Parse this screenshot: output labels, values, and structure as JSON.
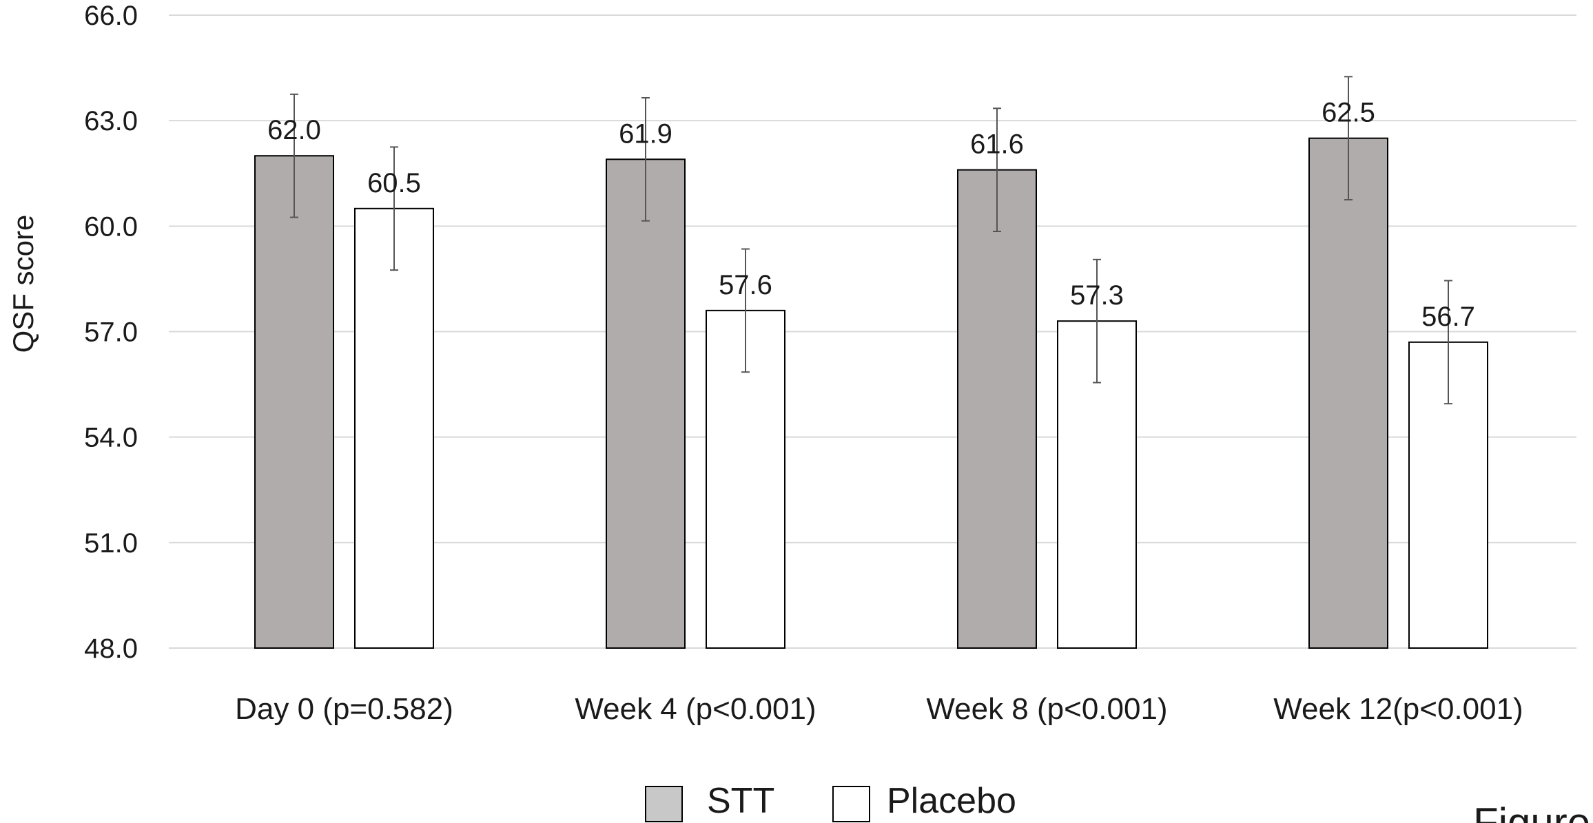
{
  "chart_data": {
    "type": "bar",
    "ylabel": "QSF score",
    "ylim": [
      48.0,
      66.0
    ],
    "yticks": [
      "48.0",
      "51.0",
      "54.0",
      "57.0",
      "60.0",
      "63.0",
      "66.0"
    ],
    "grid": true,
    "categories": [
      "Day 0 (p=0.582)",
      "Week 4 (p<0.001)",
      "Week 8 (p<0.001)",
      "Week 12(p<0.001)"
    ],
    "series": [
      {
        "name": "STT",
        "color": "#b0acab",
        "values": [
          62.0,
          61.9,
          61.6,
          62.5
        ],
        "labels": [
          "62.0",
          "61.9",
          "61.6",
          "62.5"
        ],
        "errors": [
          1.75,
          1.75,
          1.75,
          1.75
        ]
      },
      {
        "name": "Placebo",
        "color": "#ffffff",
        "values": [
          60.5,
          57.6,
          57.3,
          56.7
        ],
        "labels": [
          "60.5",
          "57.6",
          "57.3",
          "56.7"
        ],
        "errors": [
          1.75,
          1.75,
          1.75,
          1.75
        ]
      }
    ],
    "legend": {
      "position": "bottom-center",
      "legend_swatch_color_stt": "#c8c8c8"
    },
    "cutoff_text": "Figure"
  }
}
